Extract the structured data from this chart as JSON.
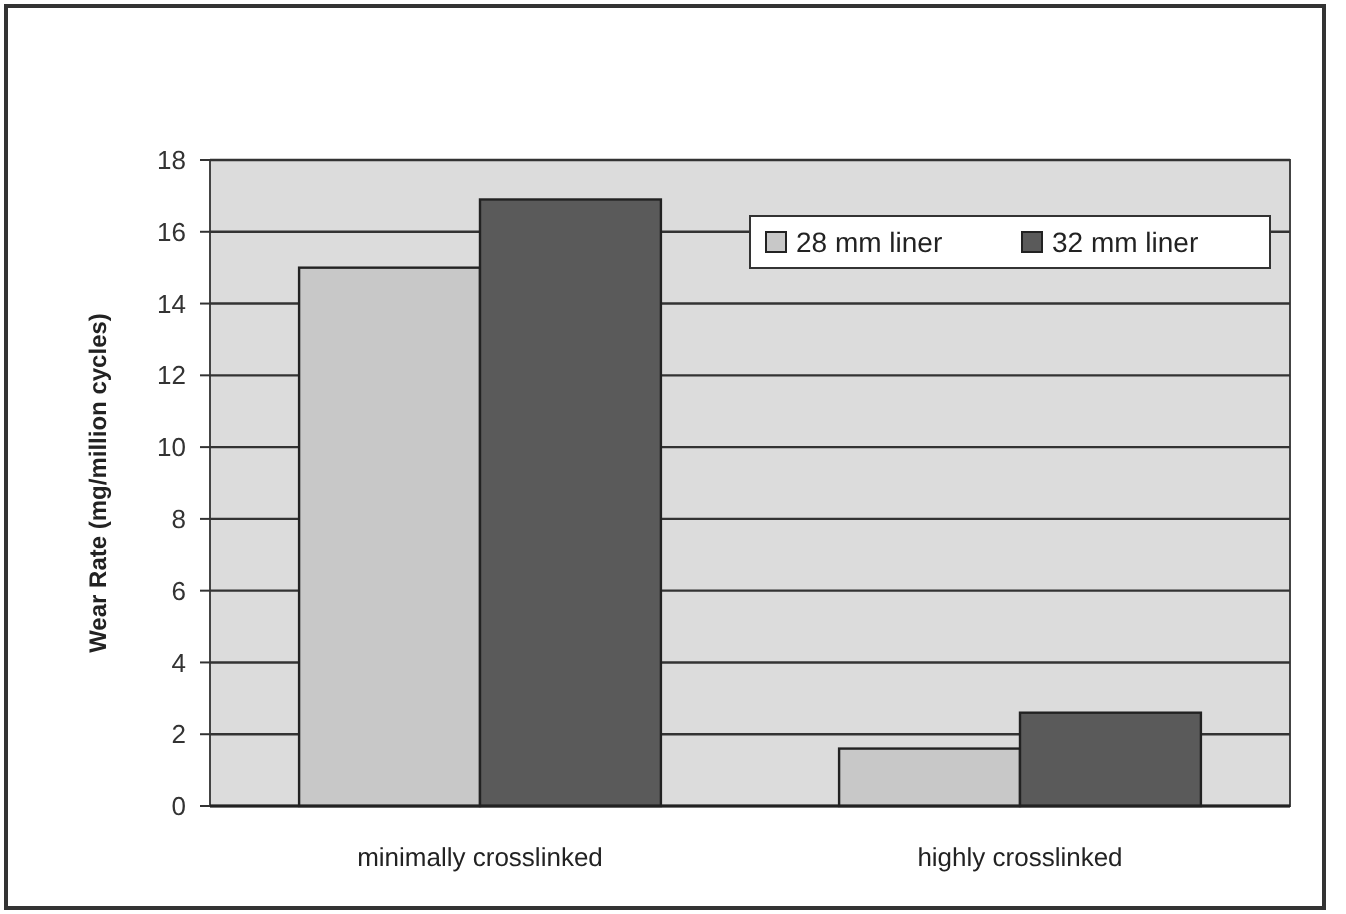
{
  "chart_data": {
    "type": "bar",
    "ylabel": "Wear Rate (mg/million cycles)",
    "categories": [
      "minimally crosslinked",
      "highly crosslinked"
    ],
    "series": [
      {
        "name": "28 mm liner",
        "color": "#c8c8c8",
        "values": [
          15,
          1.6
        ]
      },
      {
        "name": "32 mm liner",
        "color": "#5a5a5a",
        "values": [
          16.9,
          2.6
        ]
      }
    ],
    "ylim": [
      0,
      18
    ],
    "yticks": [
      0,
      2,
      4,
      6,
      8,
      10,
      12,
      14,
      16,
      18
    ],
    "grid": "y",
    "legend": "top right"
  }
}
